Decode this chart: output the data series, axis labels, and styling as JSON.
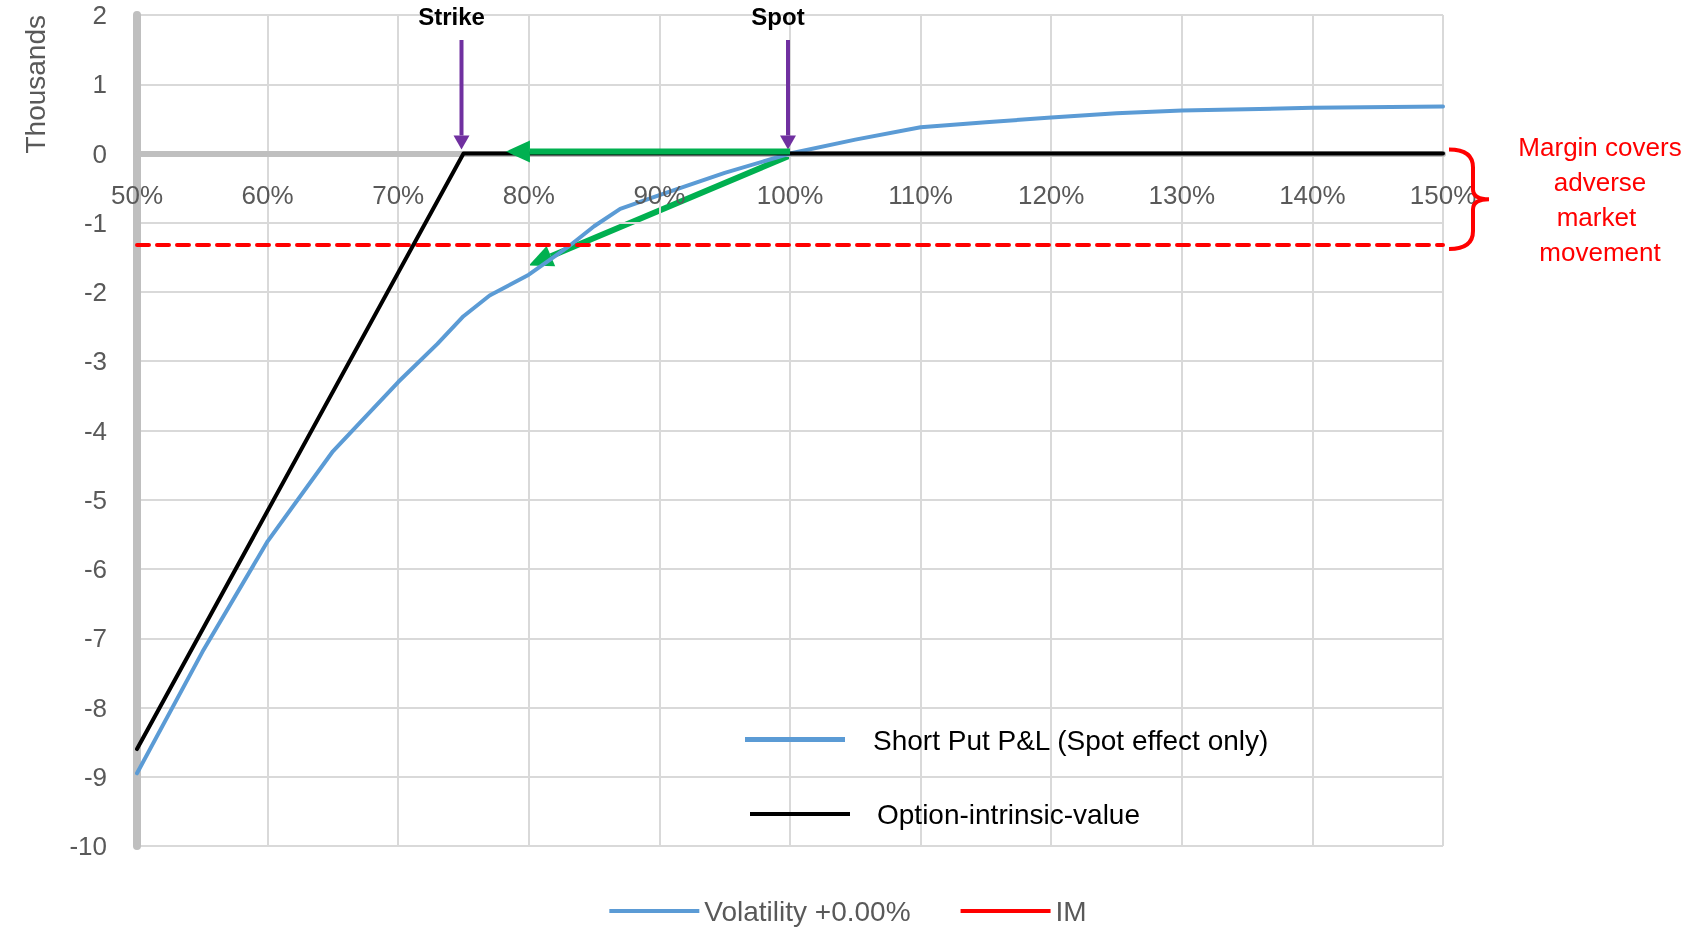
{
  "chart_data": {
    "type": "line",
    "ylabel": "Thousands",
    "xlim": [
      50,
      150
    ],
    "xticks": [
      {
        "value": 50,
        "label": "50%"
      },
      {
        "value": 60,
        "label": "60%"
      },
      {
        "value": 70,
        "label": "70%"
      },
      {
        "value": 80,
        "label": "80%"
      },
      {
        "value": 90,
        "label": "90%"
      },
      {
        "value": 100,
        "label": "100%"
      },
      {
        "value": 110,
        "label": "110%"
      },
      {
        "value": 120,
        "label": "120%"
      },
      {
        "value": 130,
        "label": "130%"
      },
      {
        "value": 140,
        "label": "140%"
      },
      {
        "value": 150,
        "label": "150%"
      }
    ],
    "ylim": [
      -10,
      2
    ],
    "yticks": [
      -10,
      -9,
      -8,
      -7,
      -6,
      -5,
      -4,
      -3,
      -2,
      -1,
      0,
      1,
      2
    ],
    "grid": true,
    "legend": "bottom",
    "marker": "none",
    "series": [
      {
        "name": "Volatility +0.00%",
        "color": "#5b9bd5",
        "line_style": "solid",
        "x": [
          50,
          55,
          60,
          65,
          67,
          70,
          73,
          75,
          77,
          80,
          83,
          85,
          87,
          90,
          95,
          100,
          105,
          110,
          115,
          120,
          125,
          130,
          140,
          150
        ],
        "values": [
          -8.95,
          -7.2,
          -5.6,
          -4.3,
          -3.9,
          -3.3,
          -2.75,
          -2.35,
          -2.05,
          -1.75,
          -1.35,
          -1.05,
          -0.8,
          -0.6,
          -0.28,
          0,
          0.2,
          0.38,
          0.45,
          0.52,
          0.58,
          0.62,
          0.66,
          0.68
        ]
      },
      {
        "name": "IM",
        "color": "#ff0000",
        "line_style": "dashed",
        "x": [
          50,
          150
        ],
        "values": [
          -1.32,
          -1.32
        ]
      },
      {
        "name": "Option-intrinsic-value",
        "color": "#000000",
        "line_style": "solid",
        "x": [
          50,
          75,
          150
        ],
        "values": [
          -8.6,
          0,
          0
        ]
      }
    ],
    "annotations": [
      "Strike",
      "Spot",
      "Margin covers adverse market movement",
      "Short Put P&L (Spot effect only)"
    ]
  }
}
